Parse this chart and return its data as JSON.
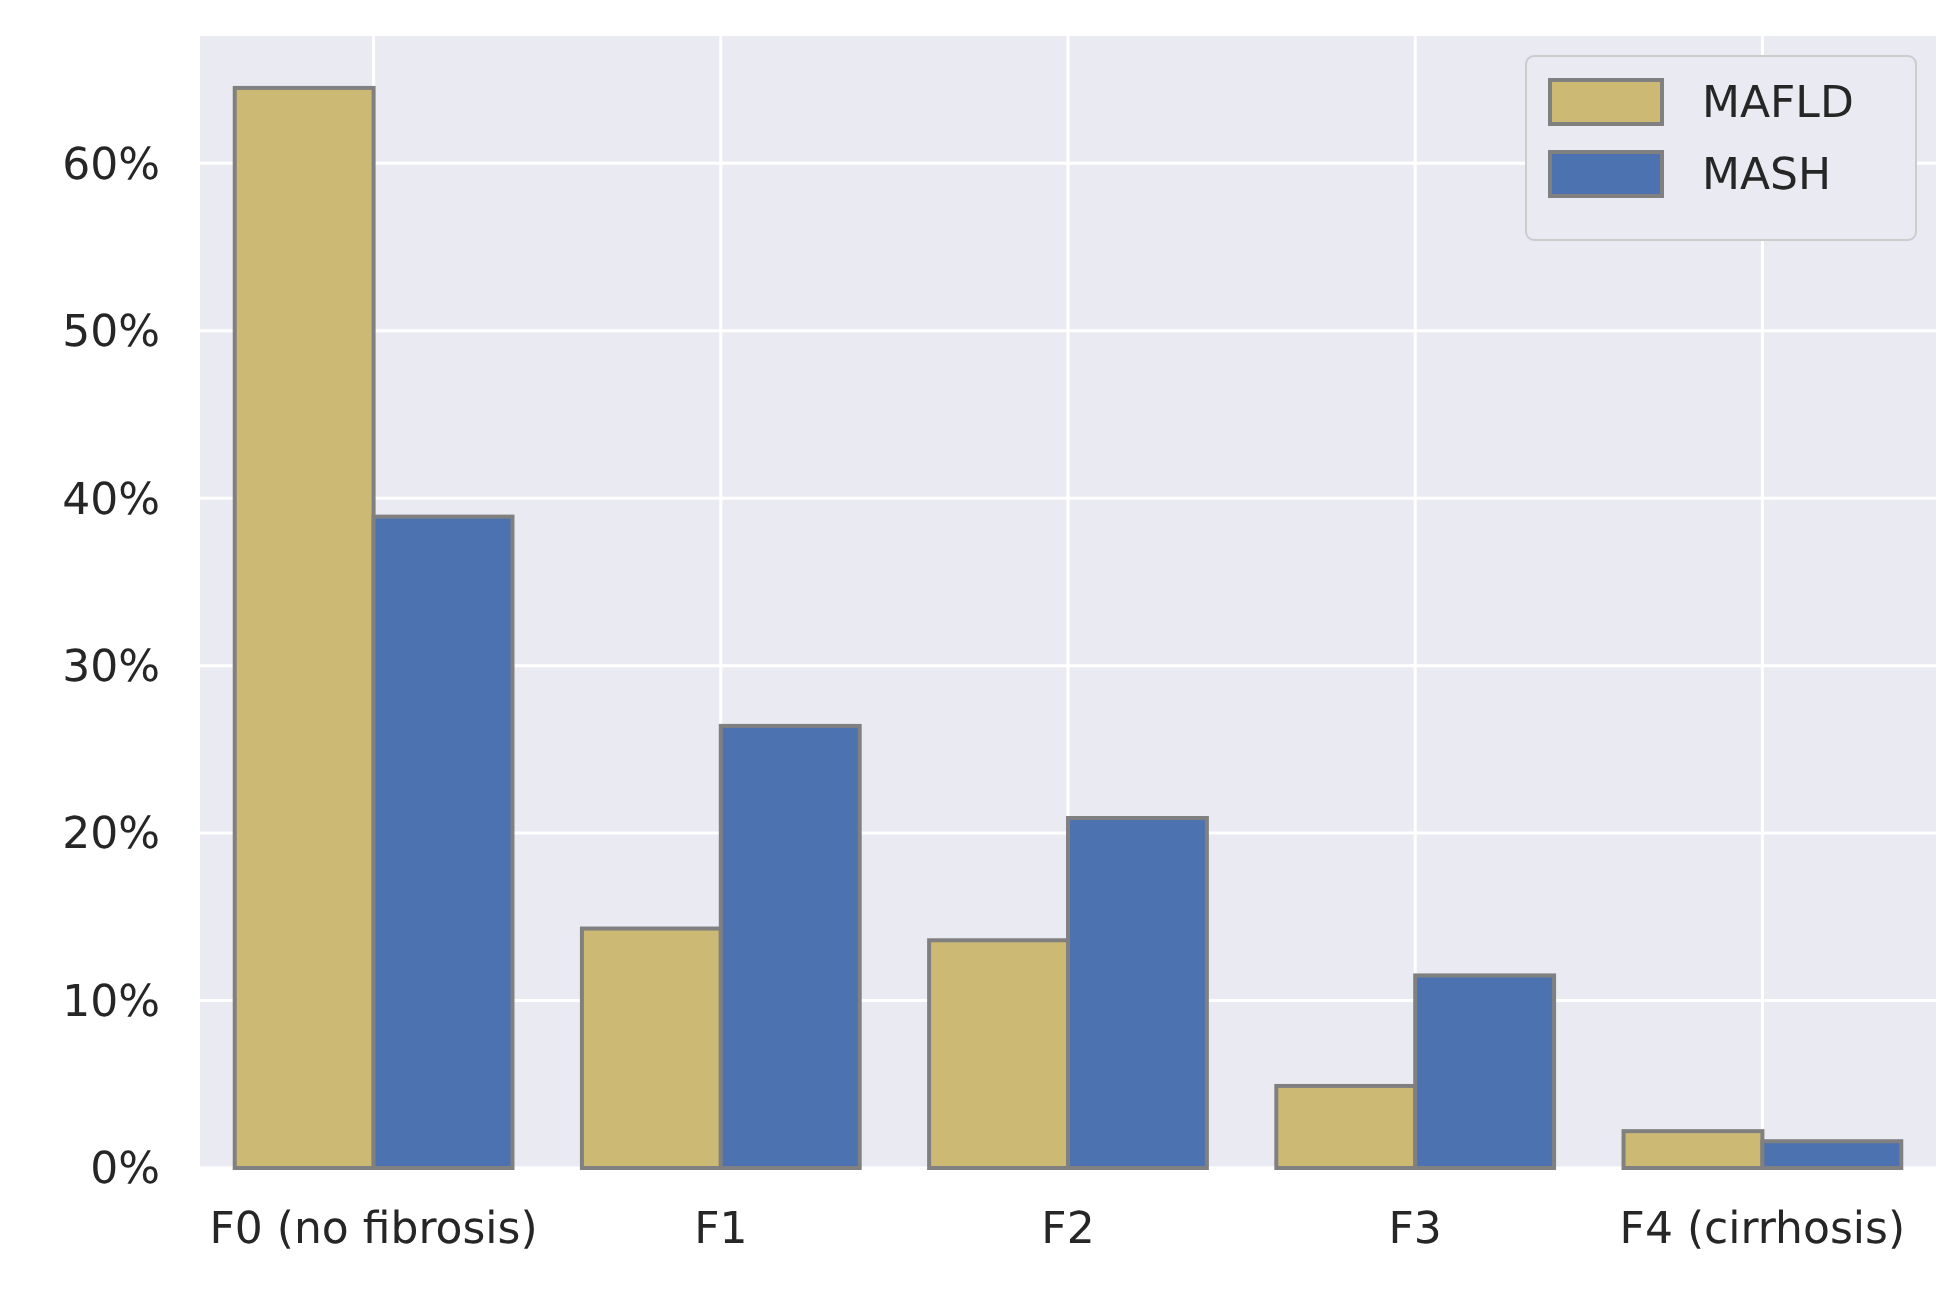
{
  "chart_data": {
    "type": "bar",
    "categories": [
      "F0 (no fibrosis)",
      "F1",
      "F2",
      "F3",
      "F4 (cirrhosis)"
    ],
    "series": [
      {
        "name": "MAFLD",
        "color": "#ccb974",
        "values": [
          64.5,
          14.3,
          13.6,
          4.9,
          2.2
        ]
      },
      {
        "name": "MASH",
        "color": "#4c72b0",
        "values": [
          38.9,
          26.4,
          20.9,
          11.5,
          1.6
        ]
      }
    ],
    "ylim": [
      0,
      67.6
    ],
    "yticks": [
      {
        "value": 0,
        "label": "0%"
      },
      {
        "value": 10,
        "label": "10%"
      },
      {
        "value": 20,
        "label": "20%"
      },
      {
        "value": 30,
        "label": "30%"
      },
      {
        "value": 40,
        "label": "40%"
      },
      {
        "value": 50,
        "label": "50%"
      },
      {
        "value": 60,
        "label": "60%"
      }
    ],
    "grid": true,
    "legend": "top right"
  }
}
